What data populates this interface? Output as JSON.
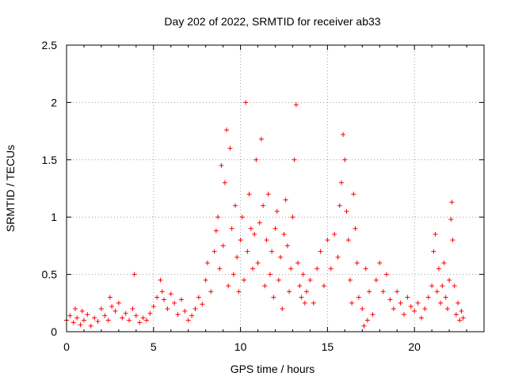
{
  "chart_data": {
    "type": "scatter",
    "title": "Day 202 of 2022, SRMTID for receiver ab33",
    "xlabel": "GPS time / hours",
    "ylabel": "SRMTID / TECUs",
    "xlim": [
      0,
      24
    ],
    "ylim": [
      0,
      2.5
    ],
    "xticks": [
      0,
      5,
      10,
      15,
      20
    ],
    "xtick_labels": [
      "0",
      "5",
      "10",
      "15",
      "20"
    ],
    "yticks": [
      0,
      0.5,
      1,
      1.5,
      2,
      2.5
    ],
    "ytick_labels": [
      "0",
      "0.5",
      "1",
      "1.5",
      "2",
      "2.5"
    ],
    "grid": true,
    "marker": "+",
    "series": [
      {
        "name": "SRMTID",
        "color": "#ff0000",
        "points": [
          [
            0.0,
            0.1
          ],
          [
            0.2,
            0.14
          ],
          [
            0.4,
            0.08
          ],
          [
            0.5,
            0.2
          ],
          [
            0.6,
            0.12
          ],
          [
            0.8,
            0.06
          ],
          [
            0.9,
            0.18
          ],
          [
            1.0,
            0.1
          ],
          [
            1.2,
            0.15
          ],
          [
            1.4,
            0.05
          ],
          [
            1.6,
            0.12
          ],
          [
            1.8,
            0.09
          ],
          [
            2.0,
            0.2
          ],
          [
            2.2,
            0.14
          ],
          [
            2.4,
            0.1
          ],
          [
            2.5,
            0.3
          ],
          [
            2.6,
            0.22
          ],
          [
            2.8,
            0.18
          ],
          [
            3.0,
            0.25
          ],
          [
            3.2,
            0.12
          ],
          [
            3.4,
            0.16
          ],
          [
            3.6,
            0.1
          ],
          [
            3.8,
            0.2
          ],
          [
            3.9,
            0.5
          ],
          [
            4.0,
            0.14
          ],
          [
            4.2,
            0.08
          ],
          [
            4.4,
            0.12
          ],
          [
            4.6,
            0.1
          ],
          [
            4.8,
            0.16
          ],
          [
            5.0,
            0.22
          ],
          [
            5.2,
            0.3
          ],
          [
            5.4,
            0.45
          ],
          [
            5.5,
            0.35
          ],
          [
            5.6,
            0.28
          ],
          [
            5.8,
            0.2
          ],
          [
            6.0,
            0.33
          ],
          [
            6.2,
            0.25
          ],
          [
            6.4,
            0.15
          ],
          [
            6.6,
            0.28
          ],
          [
            6.8,
            0.18
          ],
          [
            7.0,
            0.1
          ],
          [
            7.2,
            0.14
          ],
          [
            7.4,
            0.2
          ],
          [
            7.6,
            0.3
          ],
          [
            7.8,
            0.24
          ],
          [
            8.0,
            0.45
          ],
          [
            8.1,
            0.6
          ],
          [
            8.3,
            0.35
          ],
          [
            8.5,
            0.7
          ],
          [
            8.6,
            0.88
          ],
          [
            8.7,
            1.0
          ],
          [
            8.8,
            0.55
          ],
          [
            8.9,
            1.45
          ],
          [
            9.0,
            0.75
          ],
          [
            9.1,
            1.3
          ],
          [
            9.2,
            1.76
          ],
          [
            9.3,
            0.4
          ],
          [
            9.4,
            1.6
          ],
          [
            9.5,
            0.9
          ],
          [
            9.6,
            0.5
          ],
          [
            9.7,
            1.1
          ],
          [
            9.8,
            0.65
          ],
          [
            9.9,
            0.35
          ],
          [
            10.0,
            0.8
          ],
          [
            10.1,
            1.0
          ],
          [
            10.2,
            0.45
          ],
          [
            10.3,
            2.0
          ],
          [
            10.4,
            0.7
          ],
          [
            10.5,
            1.2
          ],
          [
            10.6,
            0.9
          ],
          [
            10.7,
            0.55
          ],
          [
            10.8,
            0.85
          ],
          [
            10.9,
            1.5
          ],
          [
            11.0,
            0.6
          ],
          [
            11.1,
            0.95
          ],
          [
            11.2,
            1.68
          ],
          [
            11.3,
            1.1
          ],
          [
            11.4,
            0.4
          ],
          [
            11.5,
            0.8
          ],
          [
            11.6,
            1.2
          ],
          [
            11.7,
            0.5
          ],
          [
            11.8,
            0.7
          ],
          [
            11.9,
            0.3
          ],
          [
            12.0,
            0.9
          ],
          [
            12.1,
            1.05
          ],
          [
            12.2,
            0.45
          ],
          [
            12.3,
            0.65
          ],
          [
            12.4,
            0.2
          ],
          [
            12.5,
            0.85
          ],
          [
            12.6,
            1.15
          ],
          [
            12.7,
            0.75
          ],
          [
            12.8,
            0.35
          ],
          [
            12.9,
            0.55
          ],
          [
            13.0,
            1.0
          ],
          [
            13.1,
            1.5
          ],
          [
            13.2,
            1.98
          ],
          [
            13.3,
            0.6
          ],
          [
            13.4,
            0.4
          ],
          [
            13.5,
            0.3
          ],
          [
            13.6,
            0.5
          ],
          [
            13.7,
            0.25
          ],
          [
            13.8,
            0.35
          ],
          [
            14.0,
            0.45
          ],
          [
            14.2,
            0.25
          ],
          [
            14.4,
            0.55
          ],
          [
            14.6,
            0.7
          ],
          [
            14.8,
            0.4
          ],
          [
            15.0,
            0.8
          ],
          [
            15.2,
            0.55
          ],
          [
            15.4,
            0.85
          ],
          [
            15.6,
            0.65
          ],
          [
            15.7,
            1.1
          ],
          [
            15.8,
            1.3
          ],
          [
            15.9,
            1.72
          ],
          [
            16.0,
            1.5
          ],
          [
            16.1,
            1.05
          ],
          [
            16.2,
            0.8
          ],
          [
            16.3,
            0.45
          ],
          [
            16.4,
            0.25
          ],
          [
            16.5,
            1.2
          ],
          [
            16.6,
            0.9
          ],
          [
            16.7,
            0.6
          ],
          [
            16.8,
            0.3
          ],
          [
            17.0,
            0.2
          ],
          [
            17.1,
            0.05
          ],
          [
            17.2,
            0.55
          ],
          [
            17.3,
            0.1
          ],
          [
            17.4,
            0.35
          ],
          [
            17.6,
            0.15
          ],
          [
            17.8,
            0.45
          ],
          [
            18.0,
            0.6
          ],
          [
            18.2,
            0.35
          ],
          [
            18.4,
            0.5
          ],
          [
            18.6,
            0.28
          ],
          [
            18.8,
            0.2
          ],
          [
            19.0,
            0.35
          ],
          [
            19.2,
            0.25
          ],
          [
            19.4,
            0.15
          ],
          [
            19.6,
            0.3
          ],
          [
            19.8,
            0.22
          ],
          [
            20.0,
            0.18
          ],
          [
            20.2,
            0.25
          ],
          [
            20.4,
            0.12
          ],
          [
            20.6,
            0.2
          ],
          [
            20.8,
            0.3
          ],
          [
            21.0,
            0.4
          ],
          [
            21.1,
            0.7
          ],
          [
            21.2,
            0.85
          ],
          [
            21.3,
            0.35
          ],
          [
            21.4,
            0.55
          ],
          [
            21.5,
            0.25
          ],
          [
            21.6,
            0.4
          ],
          [
            21.7,
            0.6
          ],
          [
            21.8,
            0.3
          ],
          [
            21.9,
            0.2
          ],
          [
            22.0,
            0.45
          ],
          [
            22.1,
            0.98
          ],
          [
            22.15,
            1.13
          ],
          [
            22.2,
            0.8
          ],
          [
            22.3,
            0.4
          ],
          [
            22.4,
            0.15
          ],
          [
            22.5,
            0.25
          ],
          [
            22.6,
            0.1
          ],
          [
            22.7,
            0.18
          ],
          [
            22.8,
            0.12
          ]
        ]
      }
    ]
  }
}
